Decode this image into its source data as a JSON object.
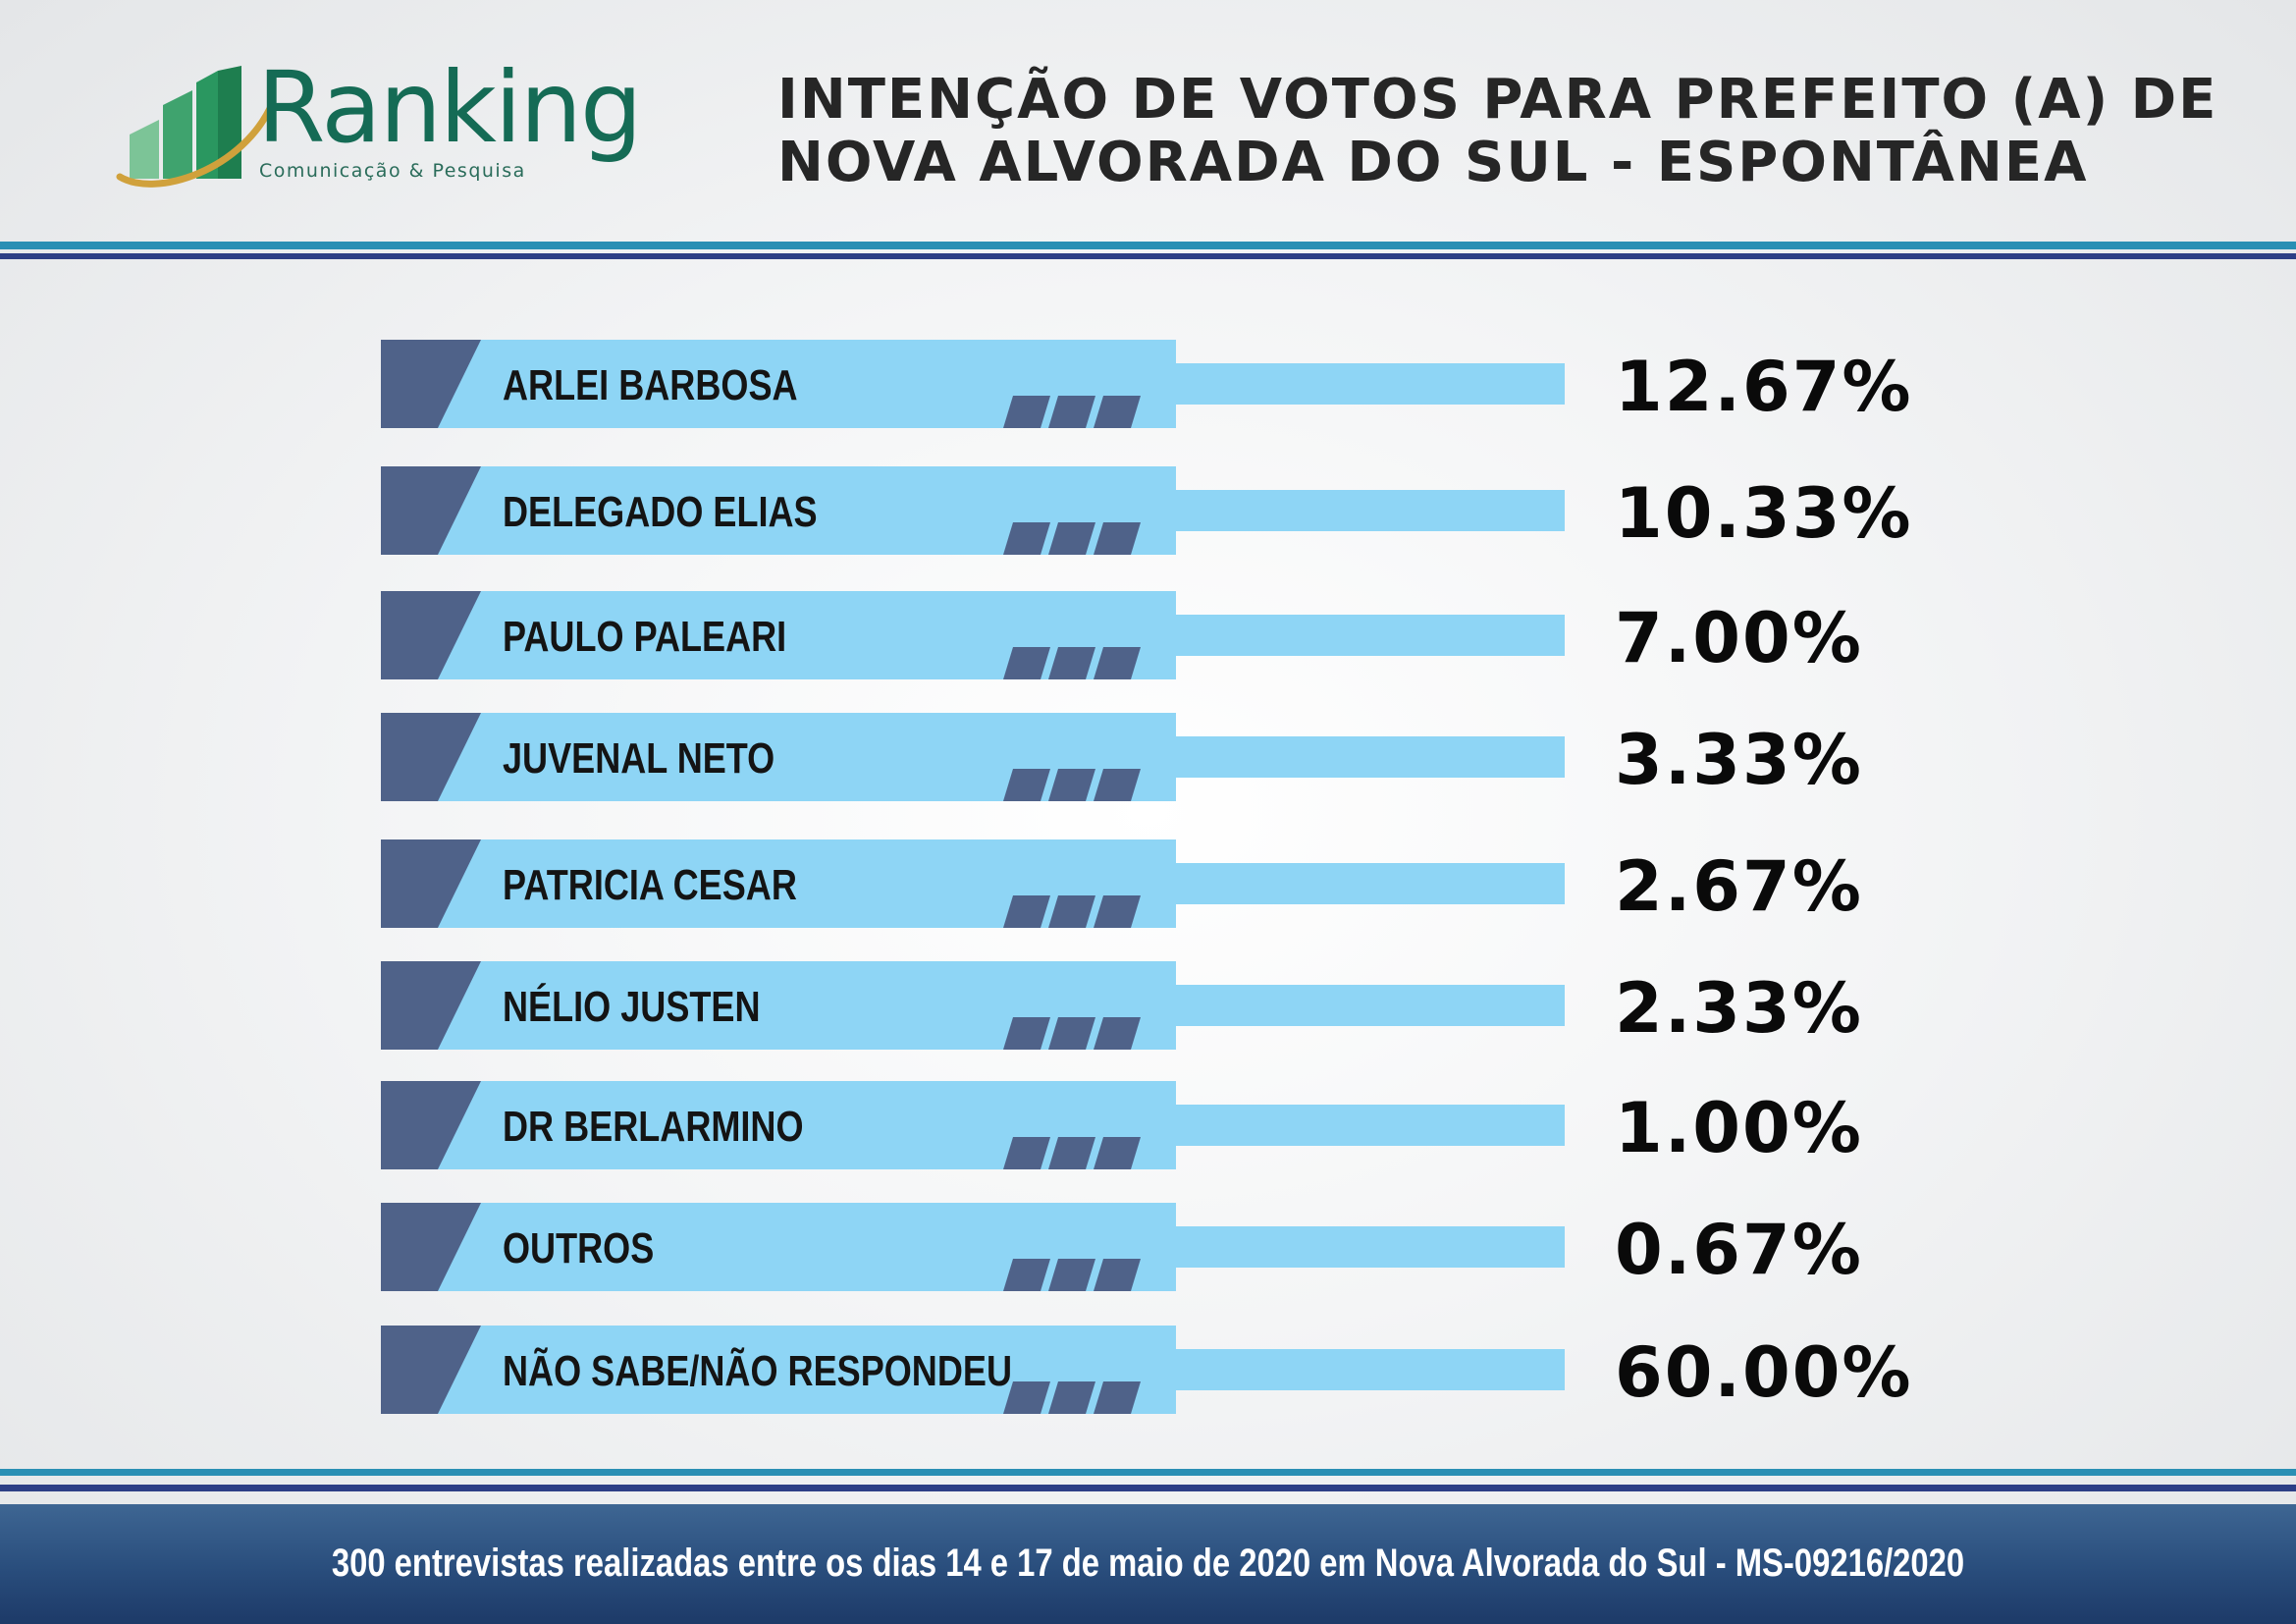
{
  "logo": {
    "name": "Ranking",
    "tagline": "Comunicação & Pesquisa"
  },
  "title": "INTENÇÃO DE VOTOS PARA PREFEITO (A) DE NOVA ALVORADA DO SUL - ESPONTÂNEA",
  "footer": "300 entrevistas realizadas entre os dias 14 e 17 de maio de 2020 em Nova Alvorada do Sul - MS-09216/2020",
  "colors": {
    "bar": "#8ed5f5",
    "accent": "#4f6289",
    "line_teal": "#2a8fb4",
    "line_navy": "#2d3f86",
    "logo_green": "#156b55",
    "logo_gold": "#d0a13c"
  },
  "chart_data": {
    "type": "table",
    "categories": [
      "ARLEI BARBOSA",
      "DELEGADO ELIAS",
      "PAULO PALEARI",
      "JUVENAL NETO",
      "PATRICIA CESAR",
      "NÉLIO JUSTEN",
      "DR BERLARMINO",
      "OUTROS",
      "NÃO SABE/NÃO RESPONDEU"
    ],
    "values": [
      12.67,
      10.33,
      7.0,
      3.33,
      2.67,
      2.33,
      1.0,
      0.67,
      60.0
    ],
    "value_labels": [
      "12.67%",
      "10.33%",
      "7.00%",
      "3.33%",
      "2.67%",
      "2.33%",
      "1.00%",
      "0.67%",
      "60.00%"
    ]
  }
}
